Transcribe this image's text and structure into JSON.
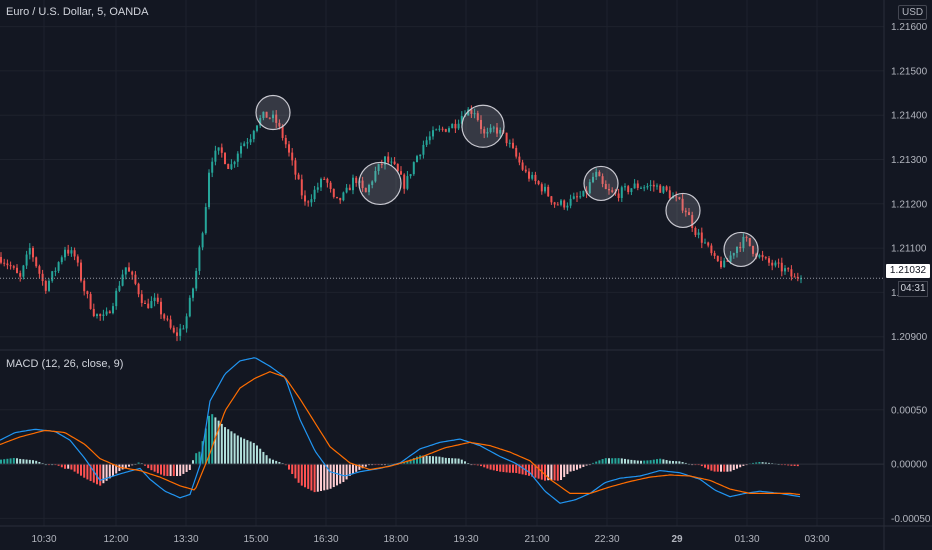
{
  "header": {
    "title": "Euro / U.S. Dollar, 5, OANDA"
  },
  "currency_badge": "USD",
  "last_price": "1.21032",
  "countdown": "04:31",
  "macd": {
    "label": "MACD (12, 26, close, 9)"
  },
  "colors": {
    "bg": "#131722",
    "up": "#26a69a",
    "down": "#ef5350",
    "macd_line": "#2196f3",
    "signal_line": "#ff6d00"
  },
  "chart_data": [
    {
      "type": "candlestick",
      "title": "Euro / U.S. Dollar, 5, OANDA",
      "ylim": [
        1.2087,
        1.2166
      ],
      "y_ticks": [
        "1.21600",
        "1.21500",
        "1.21400",
        "1.21300",
        "1.21200",
        "1.21100",
        "1.21000",
        "1.20900"
      ],
      "x_ticks": [
        "10:30",
        "12:00",
        "13:30",
        "15:00",
        "16:30",
        "18:00",
        "19:30",
        "21:00",
        "22:30",
        "29",
        "01:30",
        "03:00"
      ],
      "last_price": 1.21032,
      "path_keypoints": [
        [
          0,
          1.2108
        ],
        [
          10,
          1.2106
        ],
        [
          20,
          1.2103
        ],
        [
          30,
          1.211
        ],
        [
          45,
          1.2101
        ],
        [
          55,
          1.2105
        ],
        [
          65,
          1.211
        ],
        [
          75,
          1.2108
        ],
        [
          85,
          1.21
        ],
        [
          95,
          1.2095
        ],
        [
          105,
          1.2094
        ],
        [
          115,
          1.2099
        ],
        [
          125,
          1.2106
        ],
        [
          135,
          1.2102
        ],
        [
          145,
          1.2097
        ],
        [
          155,
          1.2098
        ],
        [
          165,
          1.2094
        ],
        [
          175,
          1.209
        ],
        [
          185,
          1.2093
        ],
        [
          195,
          1.2103
        ],
        [
          205,
          1.2118
        ],
        [
          210,
          1.213
        ],
        [
          220,
          1.2132
        ],
        [
          230,
          1.2128
        ],
        [
          240,
          1.2133
        ],
        [
          250,
          1.2135
        ],
        [
          255,
          1.2138
        ],
        [
          265,
          1.214
        ],
        [
          275,
          1.2139
        ],
        [
          285,
          1.2134
        ],
        [
          295,
          1.2127
        ],
        [
          305,
          1.212
        ],
        [
          315,
          1.2123
        ],
        [
          325,
          1.2126
        ],
        [
          335,
          1.212
        ],
        [
          345,
          1.2122
        ],
        [
          355,
          1.2126
        ],
        [
          365,
          1.2122
        ],
        [
          375,
          1.2127
        ],
        [
          385,
          1.213
        ],
        [
          395,
          1.2128
        ],
        [
          405,
          1.2124
        ],
        [
          415,
          1.213
        ],
        [
          425,
          1.2134
        ],
        [
          435,
          1.2136
        ],
        [
          445,
          1.2137
        ],
        [
          455,
          1.2138
        ],
        [
          465,
          1.2141
        ],
        [
          475,
          1.2141
        ],
        [
          485,
          1.2135
        ],
        [
          495,
          1.2137
        ],
        [
          505,
          1.2135
        ],
        [
          515,
          1.2131
        ],
        [
          525,
          1.2127
        ],
        [
          535,
          1.2125
        ],
        [
          545,
          1.2123
        ],
        [
          555,
          1.212
        ],
        [
          565,
          1.212
        ],
        [
          575,
          1.2121
        ],
        [
          585,
          1.2122
        ],
        [
          595,
          1.2127
        ],
        [
          605,
          1.2123
        ],
        [
          615,
          1.2122
        ],
        [
          625,
          1.2123
        ],
        [
          635,
          1.2124
        ],
        [
          645,
          1.2124
        ],
        [
          655,
          1.2124
        ],
        [
          665,
          1.2123
        ],
        [
          675,
          1.2121
        ],
        [
          685,
          1.2119
        ],
        [
          695,
          1.2114
        ],
        [
          705,
          1.2111
        ],
        [
          715,
          1.2107
        ],
        [
          725,
          1.2106
        ],
        [
          735,
          1.211
        ],
        [
          745,
          1.2112
        ],
        [
          755,
          1.2109
        ],
        [
          765,
          1.2107
        ],
        [
          775,
          1.2106
        ],
        [
          785,
          1.2105
        ],
        [
          795,
          1.2103
        ],
        [
          801,
          1.21032
        ]
      ],
      "highlight_circles": [
        {
          "x": 273,
          "y": 1.21406
        },
        {
          "x": 380,
          "y": 1.21246
        },
        {
          "x": 483,
          "y": 1.21375
        },
        {
          "x": 601,
          "y": 1.21246
        },
        {
          "x": 683,
          "y": 1.21185
        },
        {
          "x": 741,
          "y": 1.21097
        }
      ]
    },
    {
      "type": "macd",
      "title": "MACD (12, 26, close, 9)",
      "ylim": [
        -0.00057,
        0.00105
      ],
      "y_ticks": [
        "0.00050",
        "0.00000",
        "-0.00050"
      ],
      "macd_keypoints": [
        [
          0,
          0.00022
        ],
        [
          15,
          0.00029
        ],
        [
          35,
          0.00032
        ],
        [
          55,
          0.0003
        ],
        [
          70,
          0.00022
        ],
        [
          85,
          5e-05
        ],
        [
          100,
          -0.00015
        ],
        [
          120,
          -9e-05
        ],
        [
          140,
          -4e-05
        ],
        [
          150,
          -0.00014
        ],
        [
          165,
          -0.00025
        ],
        [
          180,
          -0.00031
        ],
        [
          190,
          -0.00028
        ],
        [
          200,
          -1e-05
        ],
        [
          210,
          0.00058
        ],
        [
          225,
          0.00083
        ],
        [
          240,
          0.00095
        ],
        [
          255,
          0.00098
        ],
        [
          270,
          0.0009
        ],
        [
          285,
          0.0008
        ],
        [
          300,
          0.00041
        ],
        [
          315,
          0.00012
        ],
        [
          330,
          -7e-05
        ],
        [
          345,
          -0.00011
        ],
        [
          360,
          -7e-05
        ],
        [
          380,
          -4e-05
        ],
        [
          400,
          1e-05
        ],
        [
          420,
          0.00014
        ],
        [
          440,
          0.0002
        ],
        [
          460,
          0.00023
        ],
        [
          480,
          0.00017
        ],
        [
          500,
          7e-05
        ],
        [
          515,
          1e-05
        ],
        [
          530,
          -8e-05
        ],
        [
          545,
          -0.00025
        ],
        [
          560,
          -0.00036
        ],
        [
          575,
          -0.00033
        ],
        [
          590,
          -0.00027
        ],
        [
          605,
          -0.00017
        ],
        [
          620,
          -0.00013
        ],
        [
          640,
          -0.00011
        ],
        [
          660,
          -6e-05
        ],
        [
          680,
          -8e-05
        ],
        [
          700,
          -0.00014
        ],
        [
          715,
          -0.00024
        ],
        [
          730,
          -0.0003
        ],
        [
          745,
          -0.00027
        ],
        [
          760,
          -0.00025
        ],
        [
          780,
          -0.00027
        ],
        [
          800,
          -0.0003
        ]
      ],
      "signal_keypoints": [
        [
          0,
          0.00018
        ],
        [
          20,
          0.00025
        ],
        [
          45,
          0.00031
        ],
        [
          65,
          0.00029
        ],
        [
          85,
          0.00018
        ],
        [
          100,
          5e-05
        ],
        [
          120,
          -3e-05
        ],
        [
          140,
          -6e-05
        ],
        [
          160,
          -0.00012
        ],
        [
          180,
          -0.0002
        ],
        [
          195,
          -0.00024
        ],
        [
          210,
          0.0001
        ],
        [
          225,
          0.00049
        ],
        [
          240,
          0.0007
        ],
        [
          255,
          0.00079
        ],
        [
          270,
          0.00085
        ],
        [
          285,
          0.0008
        ],
        [
          300,
          0.0006
        ],
        [
          315,
          0.00038
        ],
        [
          330,
          0.00016
        ],
        [
          350,
          1e-05
        ],
        [
          370,
          -5e-05
        ],
        [
          390,
          -2e-05
        ],
        [
          420,
          6e-05
        ],
        [
          445,
          0.00015
        ],
        [
          470,
          0.0002
        ],
        [
          490,
          0.00017
        ],
        [
          510,
          0.00011
        ],
        [
          530,
          3e-05
        ],
        [
          550,
          -0.00014
        ],
        [
          570,
          -0.00027
        ],
        [
          590,
          -0.00027
        ],
        [
          610,
          -0.00021
        ],
        [
          630,
          -0.00016
        ],
        [
          650,
          -0.00012
        ],
        [
          670,
          -0.0001
        ],
        [
          690,
          -0.00011
        ],
        [
          710,
          -0.00015
        ],
        [
          730,
          -0.00023
        ],
        [
          750,
          -0.00027
        ],
        [
          770,
          -0.00027
        ],
        [
          790,
          -0.00027
        ],
        [
          800,
          -0.00028
        ]
      ]
    }
  ]
}
